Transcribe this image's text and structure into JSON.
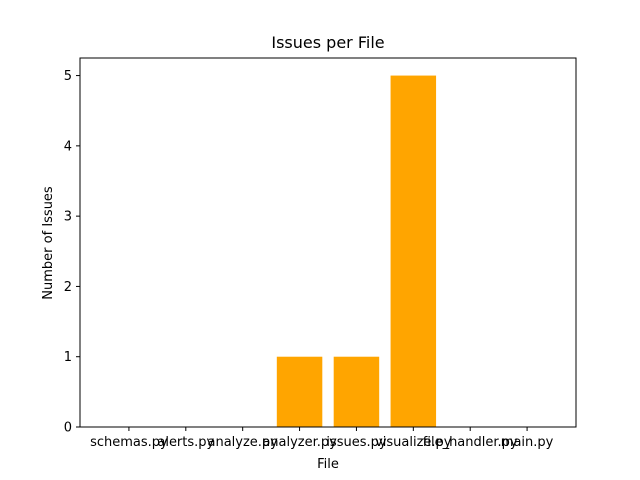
{
  "chart_data": {
    "type": "bar",
    "title": "Issues per File",
    "xlabel": "File",
    "ylabel": "Number of Issues",
    "categories": [
      "schemas.py",
      "alerts.py",
      "analyze.py",
      "analyzer.py",
      "issues.py",
      "visualize.py",
      "file_handler.py",
      "main.py"
    ],
    "values": [
      0,
      0,
      0,
      1,
      1,
      5,
      0,
      0
    ],
    "ylim": [
      0,
      5.25
    ],
    "yticks": [
      0,
      1,
      2,
      3,
      4,
      5
    ],
    "legend": "none",
    "grid": false,
    "bar_color": "#FFA500"
  }
}
